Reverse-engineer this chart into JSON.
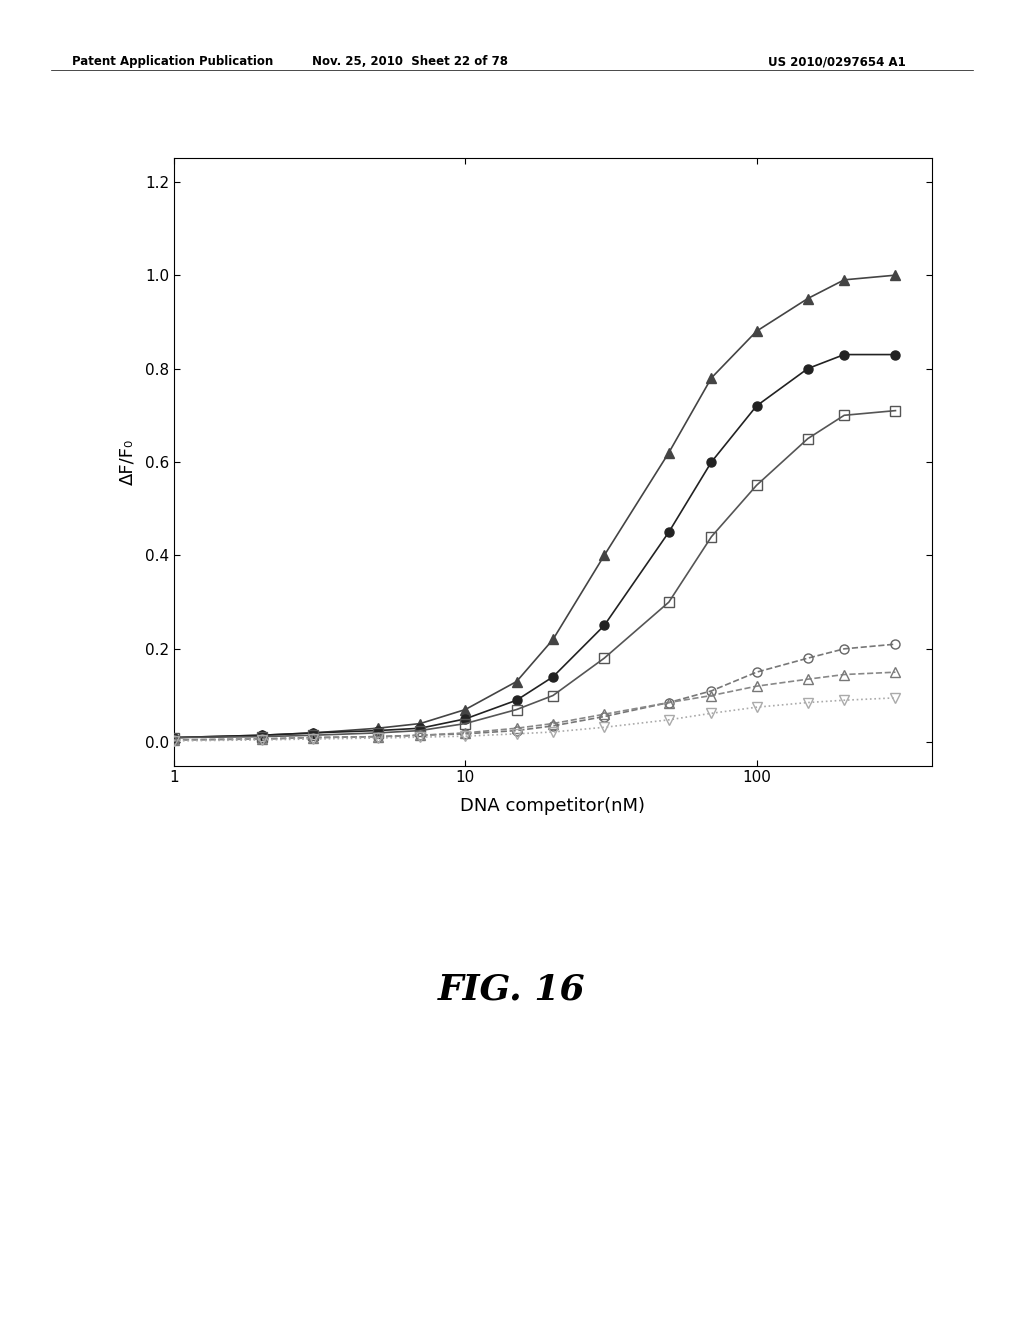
{
  "xlabel": "DNA competitor(nM)",
  "ylabel": "ΔF/F₀",
  "header_left": "Patent Application Publication",
  "header_center": "Nov. 25, 2010  Sheet 22 of 78",
  "header_right": "US 2010/0297654 A1",
  "xlim_log": [
    1,
    400
  ],
  "ylim": [
    -0.05,
    1.25
  ],
  "yticks": [
    0.0,
    0.2,
    0.4,
    0.6,
    0.8,
    1.0,
    1.2
  ],
  "xtick_labels": [
    "1",
    "10",
    "100"
  ],
  "xtick_values": [
    1,
    10,
    100
  ],
  "series": [
    {
      "name": "filled_triangle",
      "marker": "^",
      "filled": true,
      "color": "#444444",
      "linestyle": "-",
      "linecolor": "#444444",
      "x": [
        1,
        2,
        3,
        5,
        7,
        10,
        15,
        20,
        30,
        50,
        70,
        100,
        150,
        200,
        300
      ],
      "y": [
        0.01,
        0.015,
        0.02,
        0.03,
        0.04,
        0.07,
        0.13,
        0.22,
        0.4,
        0.62,
        0.78,
        0.88,
        0.95,
        0.99,
        1.0
      ]
    },
    {
      "name": "filled_circle",
      "marker": "o",
      "filled": true,
      "color": "#222222",
      "linestyle": "-",
      "linecolor": "#222222",
      "x": [
        1,
        2,
        3,
        5,
        7,
        10,
        15,
        20,
        30,
        50,
        70,
        100,
        150,
        200,
        300
      ],
      "y": [
        0.01,
        0.015,
        0.02,
        0.025,
        0.03,
        0.05,
        0.09,
        0.14,
        0.25,
        0.45,
        0.6,
        0.72,
        0.8,
        0.83,
        0.83
      ]
    },
    {
      "name": "open_square",
      "marker": "s",
      "filled": false,
      "color": "#555555",
      "linestyle": "-",
      "linecolor": "#555555",
      "x": [
        1,
        2,
        3,
        5,
        7,
        10,
        15,
        20,
        30,
        50,
        70,
        100,
        150,
        200,
        300
      ],
      "y": [
        0.01,
        0.012,
        0.015,
        0.02,
        0.025,
        0.04,
        0.07,
        0.1,
        0.18,
        0.3,
        0.44,
        0.55,
        0.65,
        0.7,
        0.71
      ]
    },
    {
      "name": "open_circle",
      "marker": "o",
      "filled": false,
      "color": "#666666",
      "linestyle": "--",
      "linecolor": "#777777",
      "x": [
        1,
        2,
        3,
        5,
        7,
        10,
        15,
        20,
        30,
        50,
        70,
        100,
        150,
        200,
        300
      ],
      "y": [
        0.005,
        0.007,
        0.01,
        0.012,
        0.015,
        0.018,
        0.025,
        0.035,
        0.055,
        0.085,
        0.11,
        0.15,
        0.18,
        0.2,
        0.21
      ]
    },
    {
      "name": "open_triangle",
      "marker": "^",
      "filled": false,
      "color": "#777777",
      "linestyle": "--",
      "linecolor": "#888888",
      "x": [
        1,
        2,
        3,
        5,
        7,
        10,
        15,
        20,
        30,
        50,
        70,
        100,
        150,
        200,
        300
      ],
      "y": [
        0.005,
        0.007,
        0.01,
        0.012,
        0.015,
        0.02,
        0.03,
        0.04,
        0.06,
        0.085,
        0.1,
        0.12,
        0.135,
        0.145,
        0.15
      ]
    },
    {
      "name": "open_inverted_triangle",
      "marker": "v",
      "filled": false,
      "color": "#aaaaaa",
      "linestyle": ":",
      "linecolor": "#aaaaaa",
      "x": [
        1,
        2,
        3,
        5,
        7,
        10,
        15,
        20,
        30,
        50,
        70,
        100,
        150,
        200,
        300
      ],
      "y": [
        0.003,
        0.005,
        0.007,
        0.009,
        0.011,
        0.013,
        0.018,
        0.022,
        0.032,
        0.048,
        0.062,
        0.075,
        0.085,
        0.09,
        0.095
      ]
    }
  ],
  "fig_label": "FIG. 16",
  "fig_label_fontsize": 26,
  "header_fontsize": 8.5,
  "axis_label_fontsize": 13,
  "tick_fontsize": 11
}
